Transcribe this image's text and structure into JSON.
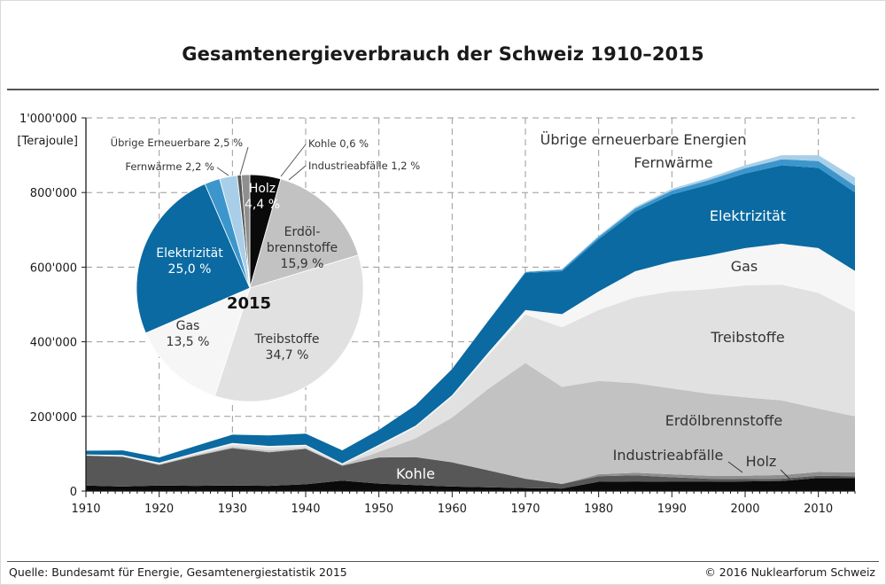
{
  "header": {
    "title": "Gesamtenergieverbrauch der Schweiz 1910–2015"
  },
  "footer": {
    "source": "Quelle: Bundesamt für Energie, Gesamtenergiestatistik 2015",
    "credit": "© 2016 Nuklearforum Schweiz"
  },
  "colors": {
    "Holz": "#0a0a0a",
    "Kohle": "#575757",
    "Industrieabfälle": "#8f8f8f",
    "Erdölbrennstoffe": "#c2c2c2",
    "Treibstoffe": "#e1e1e1",
    "Gas": "#f6f6f6",
    "Elektrizität": "#0a6aa1",
    "Fernwärme": "#3c96cc",
    "Übrige erneuerbare Energien": "#a9cfe8",
    "grid": "#9a9a9a"
  },
  "chart_data": [
    {
      "type": "area",
      "stacked": true,
      "title": "Gesamtenergieverbrauch der Schweiz 1910–2015",
      "ylabel": "[Terajoule]",
      "xlim": [
        1910,
        2015
      ],
      "ylim": [
        0,
        1000000
      ],
      "x_ticks": [
        "1910",
        "1920",
        "1930",
        "1940",
        "1950",
        "1960",
        "1970",
        "1980",
        "1990",
        "2000",
        "2010"
      ],
      "y_ticks": [
        "0",
        "200'000",
        "400'000",
        "600'000",
        "800'000",
        "1'000'000"
      ],
      "grid": true,
      "x": [
        1910,
        1915,
        1920,
        1925,
        1930,
        1935,
        1940,
        1945,
        1950,
        1955,
        1960,
        1965,
        1970,
        1975,
        1980,
        1985,
        1990,
        1995,
        2000,
        2005,
        2010,
        2015
      ],
      "series": [
        {
          "name": "Holz",
          "label": "Holz",
          "values": [
            15000,
            12000,
            15000,
            14000,
            15000,
            14000,
            18000,
            28000,
            20000,
            16000,
            12000,
            10000,
            8000,
            7000,
            25000,
            26000,
            25000,
            25000,
            26000,
            27000,
            35000,
            35000
          ]
        },
        {
          "name": "Kohle",
          "label": "Kohle",
          "values": [
            80000,
            80000,
            55000,
            80000,
            100000,
            90000,
            95000,
            40000,
            70000,
            75000,
            65000,
            45000,
            25000,
            12000,
            15000,
            16000,
            12000,
            8000,
            6000,
            6000,
            6000,
            5000
          ]
        },
        {
          "name": "Industrieabfälle",
          "label": "Industrieabfälle",
          "values": [
            0,
            0,
            0,
            0,
            0,
            0,
            0,
            0,
            0,
            0,
            0,
            0,
            0,
            0,
            5000,
            7000,
            8000,
            8000,
            9000,
            10000,
            10000,
            10000
          ]
        },
        {
          "name": "Erdölbrennstoffe",
          "label": "Erdölbrennstoffe",
          "values": [
            0,
            1000,
            2000,
            3000,
            4000,
            5000,
            3000,
            2000,
            15000,
            50000,
            120000,
            220000,
            310000,
            260000,
            250000,
            240000,
            230000,
            220000,
            210000,
            200000,
            170000,
            150000
          ]
        },
        {
          "name": "Treibstoffe",
          "label": "Treibstoffe",
          "values": [
            0,
            1000,
            1000,
            3000,
            6000,
            8000,
            5000,
            2000,
            15000,
            30000,
            55000,
            90000,
            130000,
            160000,
            190000,
            230000,
            260000,
            280000,
            300000,
            310000,
            310000,
            280000
          ]
        },
        {
          "name": "Gas",
          "label": "Gas",
          "values": [
            3000,
            3000,
            3000,
            3000,
            4000,
            4000,
            3000,
            2000,
            4000,
            4000,
            5000,
            8000,
            12000,
            35000,
            50000,
            70000,
            80000,
            90000,
            100000,
            110000,
            120000,
            110000
          ]
        },
        {
          "name": "Elektrizität",
          "label": "Elektrizität",
          "values": [
            10000,
            12000,
            14000,
            18000,
            22000,
            28000,
            30000,
            35000,
            40000,
            55000,
            70000,
            85000,
            100000,
            115000,
            140000,
            160000,
            180000,
            190000,
            200000,
            210000,
            215000,
            210000
          ]
        },
        {
          "name": "Fernwärme",
          "label": "Fernwärme",
          "values": [
            0,
            0,
            0,
            0,
            0,
            0,
            0,
            0,
            0,
            0,
            0,
            0,
            2000,
            4000,
            6000,
            8000,
            10000,
            12000,
            14000,
            16000,
            18000,
            18000
          ]
        },
        {
          "name": "Übrige erneuerbare Energien",
          "label": "Übrige erneuerbare Energien",
          "values": [
            0,
            0,
            0,
            0,
            0,
            0,
            0,
            0,
            0,
            0,
            0,
            0,
            1000,
            2000,
            3000,
            4000,
            5000,
            6000,
            8000,
            11000,
            16000,
            22000
          ]
        }
      ]
    },
    {
      "type": "pie",
      "title": "2015",
      "slices": [
        {
          "name": "Holz",
          "label": "Holz",
          "value": 4.4,
          "display": "4,4 %"
        },
        {
          "name": "Erdölbrennstoffe",
          "label": "Erdöl-\nbrennstoffe",
          "value": 15.9,
          "display": "15,9 %"
        },
        {
          "name": "Treibstoffe",
          "label": "Treibstoffe",
          "value": 34.7,
          "display": "34,7 %"
        },
        {
          "name": "Gas",
          "label": "Gas",
          "value": 13.5,
          "display": "13,5 %"
        },
        {
          "name": "Elektrizität",
          "label": "Elektrizität",
          "value": 25.0,
          "display": "25,0 %"
        },
        {
          "name": "Fernwärme",
          "label": "Fernwärme",
          "value": 2.2,
          "display": "Fernwärme 2,2 %"
        },
        {
          "name": "Übrige Erneuerbare",
          "label": "Übrige Erneuerbare",
          "value": 2.5,
          "display": "Übrige Erneuerbare 2,5 %"
        },
        {
          "name": "Kohle",
          "label": "Kohle",
          "value": 0.6,
          "display": "Kohle 0,6 %"
        },
        {
          "name": "Industrieabfälle",
          "label": "Industrieabfälle",
          "value": 1.2,
          "display": "Industrieabfälle 1,2 %"
        }
      ]
    }
  ]
}
